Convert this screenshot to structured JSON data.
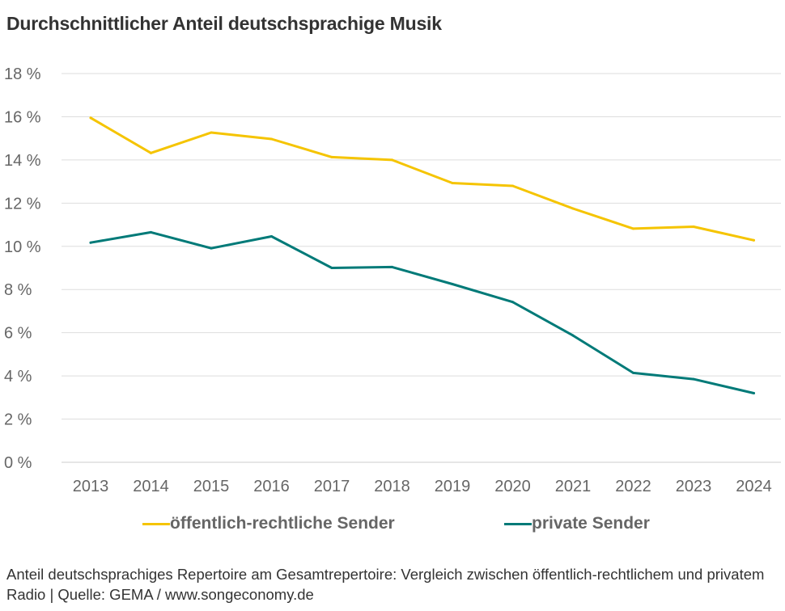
{
  "title": "Durchschnittlicher Anteil deutschsprachige Musik",
  "caption": "Anteil deutschsprachiges Repertoire am Gesamtrepertoire: Vergleich zwischen öffentlich-rechtlichem und privatem Radio | Quelle: GEMA / www.songeconomy.de",
  "colors": {
    "public": "#f5c400",
    "private": "#007a78",
    "grid": "#dddddd",
    "axis_text": "#666666"
  },
  "chart_data": {
    "type": "line",
    "title": "Durchschnittlicher Anteil deutschsprachige Musik",
    "x": [
      "2013",
      "2014",
      "2015",
      "2016",
      "2017",
      "2018",
      "2019",
      "2020",
      "2021",
      "2022",
      "2023",
      "2024"
    ],
    "ylim": [
      0,
      18
    ],
    "yticks": [
      0,
      2,
      4,
      6,
      8,
      10,
      12,
      14,
      16,
      18
    ],
    "ytick_labels": [
      "0 %",
      "2 %",
      "4 %",
      "6 %",
      "8 %",
      "10 %",
      "12 %",
      "14 %",
      "16 %",
      "18 %"
    ],
    "ylabel": "",
    "xlabel": "",
    "grid": true,
    "legend": "bottom",
    "series": [
      {
        "name": "öffentlich-rechtliche Sender",
        "color": "#f5c400",
        "values": [
          15.95,
          14.32,
          15.27,
          14.97,
          14.13,
          14.0,
          12.93,
          12.8,
          11.75,
          10.82,
          10.91,
          10.28
        ]
      },
      {
        "name": "private Sender",
        "color": "#007a78",
        "values": [
          10.17,
          10.65,
          9.91,
          10.46,
          9.0,
          9.04,
          8.25,
          7.42,
          5.87,
          4.14,
          3.85,
          3.2
        ]
      }
    ]
  }
}
